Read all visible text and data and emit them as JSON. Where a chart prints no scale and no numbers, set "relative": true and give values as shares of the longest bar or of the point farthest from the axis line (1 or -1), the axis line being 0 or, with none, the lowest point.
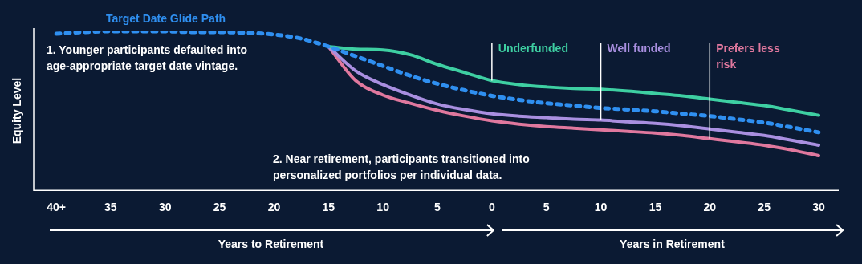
{
  "chart_data": {
    "type": "line",
    "relative": true,
    "ylabel": "Equity Level",
    "legend": false,
    "grid": false,
    "marker": "none",
    "categories": [
      "40+",
      null,
      "35",
      null,
      "30",
      null,
      "25",
      null,
      "20",
      null,
      "15",
      null,
      "10",
      null,
      "5",
      null,
      "0",
      null,
      "5",
      null,
      "10",
      null,
      "15",
      null,
      "20",
      null,
      "25",
      null,
      "30"
    ],
    "series": [
      {
        "name": "Target Date Glide Path",
        "color": "#2f8ff0",
        "line_style": "dotted",
        "values": [
          0.985,
          0.995,
          1,
          1,
          1,
          0.995,
          0.995,
          0.99,
          0.98,
          0.954,
          0.904,
          0.843,
          0.782,
          0.721,
          0.67,
          0.629,
          0.594,
          0.569,
          0.548,
          0.533,
          0.518,
          0.508,
          0.497,
          0.482,
          0.467,
          0.447,
          0.426,
          0.396,
          0.365
        ]
      },
      {
        "name": "Underfunded",
        "color": "#3ecfa2",
        "line_style": "solid",
        "values": [
          null,
          null,
          null,
          null,
          null,
          null,
          null,
          null,
          null,
          null,
          0.904,
          0.888,
          0.883,
          0.853,
          0.792,
          0.741,
          0.69,
          0.665,
          0.65,
          0.64,
          0.635,
          0.624,
          0.609,
          0.594,
          0.574,
          0.553,
          0.533,
          0.503,
          0.472
        ]
      },
      {
        "name": "Well funded",
        "color": "#a98fe0",
        "line_style": "solid",
        "values": [
          null,
          null,
          null,
          null,
          null,
          null,
          null,
          null,
          null,
          null,
          0.904,
          0.751,
          0.665,
          0.599,
          0.543,
          0.508,
          0.482,
          0.467,
          0.457,
          0.447,
          0.442,
          0.431,
          0.421,
          0.406,
          0.386,
          0.365,
          0.345,
          0.315,
          0.284
        ]
      },
      {
        "name": "Prefers less risk",
        "color": "#e0789e",
        "line_style": "solid",
        "values": [
          null,
          null,
          null,
          null,
          null,
          null,
          null,
          null,
          null,
          null,
          0.904,
          0.69,
          0.599,
          0.548,
          0.503,
          0.467,
          0.437,
          0.416,
          0.401,
          0.391,
          0.381,
          0.371,
          0.36,
          0.345,
          0.325,
          0.305,
          0.284,
          0.254,
          0.218
        ]
      }
    ],
    "annotations": [
      "1. Younger participants defaulted into age-appropriate target date vintage.",
      "2. Near retirement, participants transitioned into personalized portfolios per individual data.",
      "Years to Retirement",
      "Years in Retirement"
    ]
  }
}
